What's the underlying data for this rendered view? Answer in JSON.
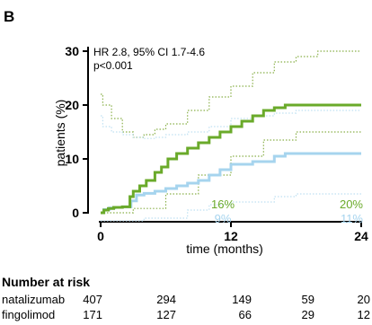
{
  "panel_label": "B",
  "chart_data": {
    "type": "line",
    "title": "",
    "xlabel": "time (months)",
    "ylabel": "patients (%)",
    "xlim": [
      0,
      24
    ],
    "ylim": [
      0,
      30
    ],
    "x_ticks": [
      0,
      12,
      24
    ],
    "y_ticks": [
      0,
      10,
      20,
      30
    ],
    "annotation_lines": [
      "HR 2.8, 95% CI 1.7-4.6",
      "p<0.001"
    ],
    "series": [
      {
        "name": "natalizumab",
        "color": "#6aaa2a",
        "style": "solid",
        "x": [
          0,
          0.3,
          0.7,
          1.2,
          2.0,
          2.7,
          3.0,
          3.6,
          4.2,
          5.0,
          5.6,
          6.2,
          7.0,
          8.0,
          9.0,
          10.0,
          11.0,
          12.0,
          13.0,
          14.0,
          15.0,
          16.0,
          17.0,
          24.0
        ],
        "y": [
          0,
          0.5,
          0.8,
          1.0,
          1.1,
          3.0,
          4.0,
          5.0,
          6.0,
          7.5,
          8.5,
          10.0,
          11.0,
          12.0,
          13.0,
          14.0,
          15.0,
          16.0,
          17.0,
          18.0,
          19.0,
          19.5,
          20.0,
          20.0
        ]
      },
      {
        "name": "natalizumab 95% CI lower",
        "color": "#8ab04a",
        "style": "dotted",
        "x": [
          0,
          3.0,
          6.0,
          9.0,
          12.0,
          15.0,
          18.0,
          24.0
        ],
        "y": [
          0,
          0.8,
          3.5,
          7.0,
          10.5,
          13.5,
          15.0,
          15.0
        ]
      },
      {
        "name": "natalizumab 95% CI upper",
        "color": "#8ab04a",
        "style": "dotted",
        "x": [
          0,
          0.2,
          1.0,
          2.0,
          3.0,
          4.0,
          5.0,
          6.0,
          8.0,
          10.0,
          12.0,
          14.0,
          16.0,
          18.0,
          20.0,
          24.0
        ],
        "y": [
          22,
          20,
          17.5,
          15.0,
          14.0,
          14.5,
          15.5,
          16.5,
          19.0,
          21.5,
          23.5,
          26.0,
          28.0,
          29.0,
          30.0,
          30.0
        ]
      },
      {
        "name": "fingolimod",
        "color": "#a6d4ee",
        "style": "solid",
        "x": [
          0,
          0.3,
          0.8,
          1.3,
          2.0,
          2.8,
          3.3,
          4.0,
          5.0,
          6.0,
          7.0,
          8.0,
          9.0,
          10.0,
          11.0,
          12.0,
          14.0,
          16.0,
          17.0,
          24.0
        ],
        "y": [
          0,
          0.6,
          0.9,
          1.0,
          1.1,
          2.2,
          3.3,
          3.6,
          4.0,
          4.5,
          5.0,
          5.5,
          6.0,
          7.0,
          8.0,
          9.0,
          9.5,
          10.5,
          11.0,
          11.0
        ]
      },
      {
        "name": "fingolimod 95% CI lower",
        "color": "#bfe0f2",
        "style": "dotted",
        "x": [
          0,
          4.0,
          8.0,
          10.0,
          12.0,
          16.0,
          18.0,
          24.0
        ],
        "y": [
          -1.5,
          -1.0,
          0.5,
          1.5,
          2.0,
          3.0,
          3.5,
          3.5
        ]
      },
      {
        "name": "fingolimod 95% CI upper",
        "color": "#bfe0f2",
        "style": "dotted",
        "x": [
          0,
          0.2,
          1.0,
          2.0,
          3.0,
          4.0,
          5.0,
          6.0,
          8.0,
          10.0,
          12.0,
          14.0,
          16.0,
          18.0,
          20.0,
          24.0
        ],
        "y": [
          18,
          16,
          15.0,
          14.5,
          14.0,
          13.8,
          14.0,
          14.5,
          15.0,
          16.0,
          17.5,
          18.0,
          18.5,
          19.0,
          19.0,
          19.0
        ]
      }
    ],
    "end_labels": [
      {
        "text": "16%",
        "color": "#6aaa2a"
      },
      {
        "text": "20%",
        "color": "#6aaa2a"
      },
      {
        "text": "9%",
        "color": "#a6d4ee"
      },
      {
        "text": "11%",
        "color": "#a6d4ee"
      }
    ]
  },
  "risk_table": {
    "title": "Number at risk",
    "rows": [
      {
        "label": "natalizumab",
        "values": [
          "407",
          "294",
          "149",
          "59",
          "20"
        ]
      },
      {
        "label": "fingolimod",
        "values": [
          "171",
          "127",
          "66",
          "29",
          "12"
        ]
      }
    ]
  }
}
